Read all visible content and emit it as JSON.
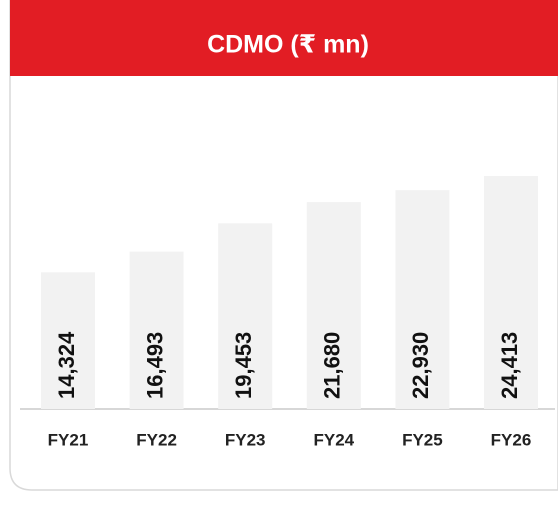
{
  "chart_data": {
    "type": "bar",
    "title": "CDMO (₹ mn)",
    "categories": [
      "FY21",
      "FY22",
      "FY23",
      "FY24",
      "FY25",
      "FY26"
    ],
    "values": [
      14324,
      16493,
      19453,
      21680,
      22930,
      24413
    ],
    "value_labels": [
      "14,324",
      "16,493",
      "19,453",
      "21,680",
      "22,930",
      "24,413"
    ],
    "color": "#f2f2f2"
  }
}
